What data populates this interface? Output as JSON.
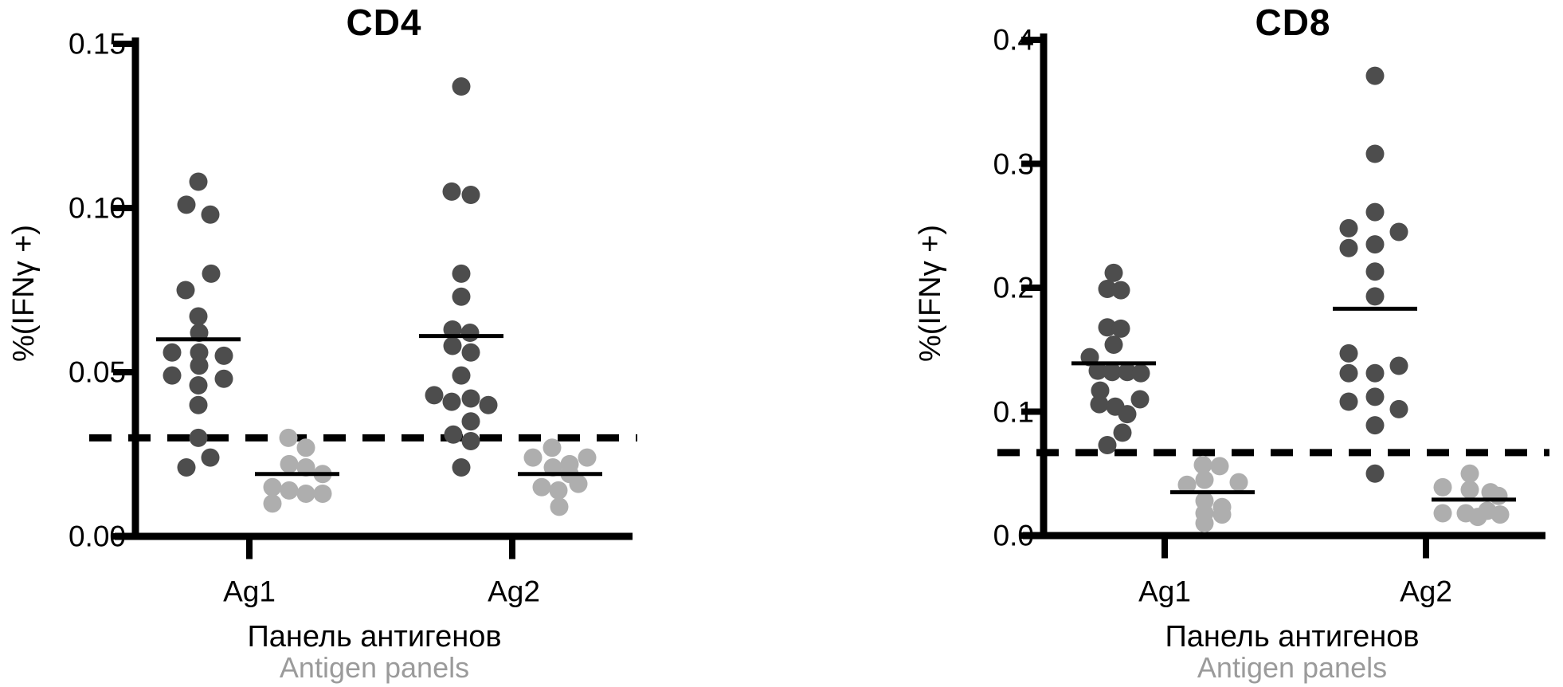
{
  "figure": {
    "colors": {
      "stimulated_dot": "#4d4d4d",
      "control_dot": "#aeaeae",
      "axis": "#000000",
      "median_line": "#000000",
      "threshold_line": "#000000",
      "secondary_label_gray": "#9b9b9b"
    }
  },
  "chart_data": [
    {
      "type": "scatter",
      "title": "CD4",
      "ylabel": "%(IFNγ +)",
      "xlabel_primary": "Панель антигенов",
      "xlabel_secondary": "Antigen panels",
      "categories": [
        "Ag1",
        "Ag2"
      ],
      "ylim": [
        0,
        0.15
      ],
      "grid": false,
      "legend": "none",
      "yticks": [
        {
          "value": 0.0,
          "label": "0.00"
        },
        {
          "value": 0.05,
          "label": "0.05"
        },
        {
          "value": 0.1,
          "label": "0.10"
        },
        {
          "value": 0.15,
          "label": "0.15"
        }
      ],
      "threshold_value": 0.03,
      "groups": [
        {
          "category": "Ag1",
          "series": "stimulated",
          "median_line": 0.06,
          "points": [
            {
              "v": 0.108,
              "dx": 0
            },
            {
              "v": 0.101,
              "dx": -15
            },
            {
              "v": 0.098,
              "dx": 15
            },
            {
              "v": 0.08,
              "dx": 16
            },
            {
              "v": 0.075,
              "dx": -16
            },
            {
              "v": 0.067,
              "dx": 0
            },
            {
              "v": 0.062,
              "dx": 1
            },
            {
              "v": 0.056,
              "dx": -33
            },
            {
              "v": 0.056,
              "dx": 1
            },
            {
              "v": 0.055,
              "dx": 32
            },
            {
              "v": 0.052,
              "dx": 1
            },
            {
              "v": 0.049,
              "dx": -33
            },
            {
              "v": 0.048,
              "dx": 32
            },
            {
              "v": 0.046,
              "dx": 0
            },
            {
              "v": 0.04,
              "dx": 0
            },
            {
              "v": 0.03,
              "dx": 0
            },
            {
              "v": 0.024,
              "dx": 15
            },
            {
              "v": 0.021,
              "dx": -15
            }
          ]
        },
        {
          "category": "Ag1",
          "series": "control",
          "median_line": 0.019,
          "points": [
            {
              "v": 0.03,
              "dx": -11
            },
            {
              "v": 0.027,
              "dx": 11
            },
            {
              "v": 0.022,
              "dx": -10
            },
            {
              "v": 0.021,
              "dx": 11
            },
            {
              "v": 0.019,
              "dx": 32
            },
            {
              "v": 0.015,
              "dx": -31
            },
            {
              "v": 0.014,
              "dx": -10
            },
            {
              "v": 0.013,
              "dx": 11
            },
            {
              "v": 0.013,
              "dx": 32
            },
            {
              "v": 0.01,
              "dx": -31
            }
          ]
        },
        {
          "category": "Ag2",
          "series": "stimulated",
          "median_line": 0.061,
          "points": [
            {
              "v": 0.137,
              "dx": 0
            },
            {
              "v": 0.105,
              "dx": -12
            },
            {
              "v": 0.104,
              "dx": 12
            },
            {
              "v": 0.08,
              "dx": 0
            },
            {
              "v": 0.073,
              "dx": 0
            },
            {
              "v": 0.063,
              "dx": -11
            },
            {
              "v": 0.062,
              "dx": 11
            },
            {
              "v": 0.058,
              "dx": -11
            },
            {
              "v": 0.056,
              "dx": 12
            },
            {
              "v": 0.049,
              "dx": 0
            },
            {
              "v": 0.043,
              "dx": -34
            },
            {
              "v": 0.042,
              "dx": 12
            },
            {
              "v": 0.041,
              "dx": -12
            },
            {
              "v": 0.04,
              "dx": 34
            },
            {
              "v": 0.035,
              "dx": 12
            },
            {
              "v": 0.031,
              "dx": -10
            },
            {
              "v": 0.029,
              "dx": 12
            },
            {
              "v": 0.021,
              "dx": 0
            }
          ]
        },
        {
          "category": "Ag2",
          "series": "control",
          "median_line": 0.019,
          "points": [
            {
              "v": 0.027,
              "dx": -10
            },
            {
              "v": 0.024,
              "dx": -34
            },
            {
              "v": 0.024,
              "dx": 34
            },
            {
              "v": 0.022,
              "dx": 12
            },
            {
              "v": 0.021,
              "dx": -9
            },
            {
              "v": 0.019,
              "dx": 12
            },
            {
              "v": 0.016,
              "dx": 23
            },
            {
              "v": 0.015,
              "dx": -23
            },
            {
              "v": 0.014,
              "dx": -2
            },
            {
              "v": 0.009,
              "dx": -1
            }
          ]
        }
      ]
    },
    {
      "type": "scatter",
      "title": "CD8",
      "ylabel": "%(IFNγ +)",
      "xlabel_primary": "Панель антигенов",
      "xlabel_secondary": "Antigen panels",
      "categories": [
        "Ag1",
        "Ag2"
      ],
      "ylim": [
        0,
        0.4
      ],
      "grid": false,
      "legend": "none",
      "yticks": [
        {
          "value": 0.0,
          "label": "0.0"
        },
        {
          "value": 0.1,
          "label": "0.1"
        },
        {
          "value": 0.2,
          "label": "0.2"
        },
        {
          "value": 0.3,
          "label": "0.3"
        },
        {
          "value": 0.4,
          "label": "0.4"
        }
      ],
      "threshold_value": 0.067,
      "groups": [
        {
          "category": "Ag1",
          "series": "stimulated",
          "median_line": 0.139,
          "points": [
            {
              "v": 0.212,
              "dx": 0
            },
            {
              "v": 0.199,
              "dx": -8
            },
            {
              "v": 0.198,
              "dx": 9
            },
            {
              "v": 0.168,
              "dx": -8
            },
            {
              "v": 0.167,
              "dx": 9
            },
            {
              "v": 0.154,
              "dx": 0
            },
            {
              "v": 0.144,
              "dx": -30
            },
            {
              "v": 0.133,
              "dx": -20
            },
            {
              "v": 0.132,
              "dx": -2
            },
            {
              "v": 0.132,
              "dx": 17
            },
            {
              "v": 0.131,
              "dx": 34
            },
            {
              "v": 0.117,
              "dx": -17
            },
            {
              "v": 0.11,
              "dx": 33
            },
            {
              "v": 0.106,
              "dx": -18
            },
            {
              "v": 0.104,
              "dx": 2
            },
            {
              "v": 0.098,
              "dx": 17
            },
            {
              "v": 0.083,
              "dx": 11
            },
            {
              "v": 0.073,
              "dx": -8
            }
          ]
        },
        {
          "category": "Ag1",
          "series": "control",
          "median_line": 0.035,
          "points": [
            {
              "v": 0.057,
              "dx": -12
            },
            {
              "v": 0.056,
              "dx": 9
            },
            {
              "v": 0.045,
              "dx": -10
            },
            {
              "v": 0.043,
              "dx": 33
            },
            {
              "v": 0.041,
              "dx": -32
            },
            {
              "v": 0.028,
              "dx": -10
            },
            {
              "v": 0.023,
              "dx": 12
            },
            {
              "v": 0.018,
              "dx": -10
            },
            {
              "v": 0.017,
              "dx": 12
            },
            {
              "v": 0.01,
              "dx": -10
            }
          ]
        },
        {
          "category": "Ag2",
          "series": "stimulated",
          "median_line": 0.183,
          "points": [
            {
              "v": 0.371,
              "dx": 0
            },
            {
              "v": 0.308,
              "dx": 0
            },
            {
              "v": 0.261,
              "dx": 0
            },
            {
              "v": 0.248,
              "dx": -33
            },
            {
              "v": 0.245,
              "dx": 30
            },
            {
              "v": 0.235,
              "dx": 0
            },
            {
              "v": 0.232,
              "dx": -33
            },
            {
              "v": 0.213,
              "dx": 0
            },
            {
              "v": 0.193,
              "dx": 0
            },
            {
              "v": 0.147,
              "dx": -33
            },
            {
              "v": 0.137,
              "dx": 30
            },
            {
              "v": 0.131,
              "dx": -33
            },
            {
              "v": 0.131,
              "dx": 0
            },
            {
              "v": 0.112,
              "dx": 0
            },
            {
              "v": 0.108,
              "dx": -33
            },
            {
              "v": 0.102,
              "dx": 30
            },
            {
              "v": 0.089,
              "dx": 0
            },
            {
              "v": 0.05,
              "dx": 0
            }
          ]
        },
        {
          "category": "Ag2",
          "series": "control",
          "median_line": 0.029,
          "points": [
            {
              "v": 0.05,
              "dx": -5
            },
            {
              "v": 0.039,
              "dx": -39
            },
            {
              "v": 0.037,
              "dx": -5
            },
            {
              "v": 0.035,
              "dx": 21
            },
            {
              "v": 0.032,
              "dx": 31
            },
            {
              "v": 0.02,
              "dx": 17
            },
            {
              "v": 0.018,
              "dx": -39
            },
            {
              "v": 0.018,
              "dx": -10
            },
            {
              "v": 0.017,
              "dx": 33
            },
            {
              "v": 0.015,
              "dx": 5
            }
          ]
        }
      ]
    }
  ]
}
